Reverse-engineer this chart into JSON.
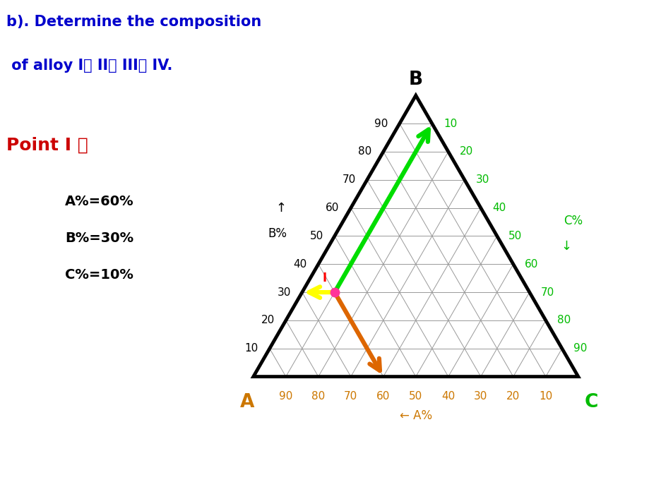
{
  "title_line1": "b). Determine the composition",
  "title_line2": " of alloy I、 II、 III、 IV.",
  "point_label": "Point I ：",
  "composition_text": [
    "A%=60%",
    "B%=30%",
    "C%=10%"
  ],
  "bg_color": "#ffffff",
  "title_color": "#0000cc",
  "point_label_color": "#cc0000",
  "composition_color": "#000000",
  "A_label_color": "#cc7700",
  "B_label_color": "#000000",
  "C_label_color": "#00bb00",
  "grid_color": "#999999",
  "triangle_color": "#000000",
  "point_color": "#ff3399",
  "arrow_green_color": "#00dd00",
  "arrow_yellow_color": "#ffff00",
  "arrow_orange_color": "#dd6600",
  "point_I": [
    0.6,
    0.3,
    0.1
  ]
}
